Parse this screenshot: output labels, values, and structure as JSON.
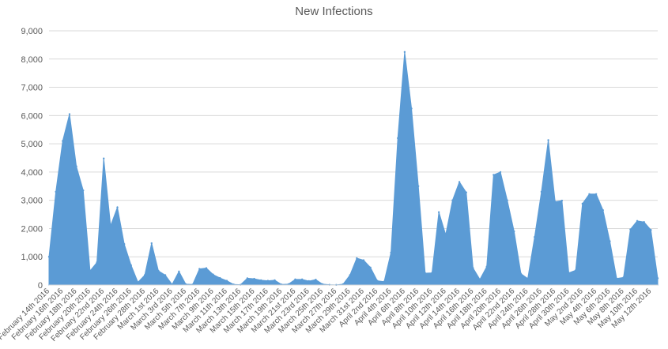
{
  "chart_data": {
    "type": "area",
    "title": "New Infections",
    "xlabel": "",
    "ylabel": "",
    "ylim": [
      0,
      9000
    ],
    "yticks": [
      0,
      1000,
      2000,
      3000,
      4000,
      5000,
      6000,
      7000,
      8000,
      9000
    ],
    "ytick_labels": [
      "0",
      "1,000",
      "2,000",
      "3,000",
      "4,000",
      "5,000",
      "6,000",
      "7,000",
      "8,000",
      "9,000"
    ],
    "grid": true,
    "legend": "none",
    "colors": {
      "area": "#5b9bd5",
      "grid": "#d9d9d9",
      "text": "#595959"
    },
    "x": [
      "February 14th 2016",
      "February 15th 2016",
      "February 16th 2016",
      "February 17th 2016",
      "February 18th 2016",
      "February 19th 2016",
      "February 20th 2016",
      "February 21st 2016",
      "February 22nd 2016",
      "February 23rd 2016",
      "February 24th 2016",
      "February 25th 2016",
      "February 26th 2016",
      "February 27th 2016",
      "February 28th 2016",
      "February 29th 2016",
      "March 1st 2016",
      "March 2nd 2016",
      "March 3rd 2016",
      "March 4th 2016",
      "March 5th 2016",
      "March 6th 2016",
      "March 7th 2016",
      "March 8th 2016",
      "March 9th 2016",
      "March 10th 2016",
      "March 11th 2016",
      "March 12th 2016",
      "March 13th 2016",
      "March 14th 2016",
      "March 15th 2016",
      "March 16th 2016",
      "March 17th 2016",
      "March 18th 2016",
      "March 19th 2016",
      "March 20th 2016",
      "March 21st 2016",
      "March 22nd 2016",
      "March 23rd 2016",
      "March 24th 2016",
      "March 25th 2016",
      "March 26th 2016",
      "March 27th 2016",
      "March 28th 2016",
      "March 29th 2016",
      "March 30th 2016",
      "March 31st 2016",
      "April 1st 2016",
      "April 2nd 2016",
      "April 3rd 2016",
      "April 4th 2016",
      "April 5th 2016",
      "April 6th 2016",
      "April 7th 2016",
      "April 8th 2016",
      "April 9th 2016",
      "April 10th 2016",
      "April 11th 2016",
      "April 12th 2016",
      "April 13th 2016",
      "April 14th 2016",
      "April 15th 2016",
      "April 16th 2016",
      "April 17th 2016",
      "April 18th 2016",
      "April 19th 2016",
      "April 20th 2016",
      "April 21st 2016",
      "April 22nd 2016",
      "April 23rd 2016",
      "April 24th 2016",
      "April 25th 2016",
      "April 26th 2016",
      "April 27th 2016",
      "April 28th 2016",
      "April 29th 2016",
      "April 30th 2016",
      "May 1st 2016",
      "May 2nd 2016",
      "May 3rd 2016",
      "May 4th 2016",
      "May 5th 2016",
      "May 6th 2016",
      "May 7th 2016",
      "May 8th 2016",
      "May 9th 2016",
      "May 10th 2016",
      "May 11th 2016",
      "May 12th 2016",
      "May 13th 2016"
    ],
    "x_tick_labels": [
      "February 14th 2016",
      "February 16th 2016",
      "February 18th 2016",
      "February 20th 2016",
      "February 22nd 2016",
      "February 24th 2016",
      "February 26th 2016",
      "February 28th 2016",
      "March 1st 2016",
      "March 3rd 2016",
      "March 5th 2016",
      "March 7th 2016",
      "March 9th 2016",
      "March 11th 2016",
      "March 13th 2016",
      "March 15th 2016",
      "March 17th 2016",
      "March 19th 2016",
      "March 21st 2016",
      "March 23rd 2016",
      "March 25th 2016",
      "March 27th 2016",
      "March 29th 2016",
      "March 31st 2016",
      "April 2nd 2016",
      "April 4th 2016",
      "April 6th 2016",
      "April 8th 2016",
      "April 10th 2016",
      "April 12th 2016",
      "April 14th 2016",
      "April 16th 2016",
      "April 18th 2016",
      "April 20th 2016",
      "April 22nd 2016",
      "April 24th 2016",
      "April 26th 2016",
      "April 28th 2016",
      "April 30th 2016",
      "May 2nd 2016",
      "May 4th 2016",
      "May 6th 2016",
      "May 8th 2016",
      "May 10th 2016",
      "May 12th 2016"
    ],
    "series": [
      {
        "values": [
          1000,
          3300,
          5100,
          6050,
          4200,
          3350,
          500,
          800,
          4480,
          2100,
          2750,
          1450,
          700,
          100,
          350,
          1480,
          500,
          350,
          20,
          480,
          30,
          20,
          570,
          600,
          370,
          250,
          150,
          20,
          10,
          240,
          220,
          170,
          150,
          170,
          20,
          30,
          200,
          200,
          140,
          190,
          30,
          10,
          5,
          30,
          350,
          950,
          880,
          620,
          150,
          120,
          1150,
          5200,
          8250,
          6250,
          3500,
          420,
          430,
          2580,
          1780,
          3000,
          3650,
          3280,
          600,
          200,
          650,
          3900,
          4000,
          3000,
          1900,
          400,
          230,
          1700,
          3300,
          5130,
          2950,
          2990,
          430,
          520,
          2880,
          3220,
          3220,
          2650,
          1550,
          230,
          270,
          1970,
          2270,
          2230,
          1950,
          240
        ]
      }
    ]
  }
}
